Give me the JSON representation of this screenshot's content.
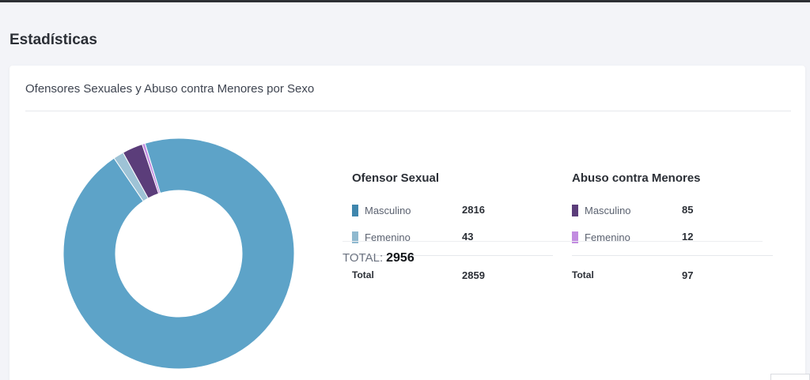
{
  "page": {
    "title": "Estadísticas"
  },
  "card": {
    "title": "Ofensores Sexuales y Abuso contra Menores por Sexo"
  },
  "colors": {
    "ofensor_masculino": "#5da3c8",
    "ofensor_femenino": "#9ec3d6",
    "abuso_masculino": "#5b3d7a",
    "abuso_femenino": "#c28ce0",
    "ofensor_masculino_swatch": "#3f86ad",
    "ofensor_femenino_swatch": "#8fb9cf"
  },
  "groups": [
    {
      "title": "Ofensor Sexual",
      "rows": [
        {
          "label": "Masculino",
          "value": "2816"
        },
        {
          "label": "Femenino",
          "value": "43"
        }
      ],
      "total_label": "Total",
      "total_value": "2859"
    },
    {
      "title": "Abuso contra Menores",
      "rows": [
        {
          "label": "Masculino",
          "value": "85"
        },
        {
          "label": "Femenino",
          "value": "12"
        }
      ],
      "total_label": "Total",
      "total_value": "97"
    }
  ],
  "grand_total": {
    "label": "TOTAL:",
    "value": "2956"
  },
  "chart_data": {
    "type": "pie",
    "donut": true,
    "categories": [
      "Ofensor Sexual Masculino",
      "Ofensor Sexual Femenino",
      "Abuso contra Menores Masculino",
      "Abuso contra Menores Femenino"
    ],
    "values": [
      2816,
      43,
      85,
      12
    ],
    "colors": [
      "#5da3c8",
      "#9ec3d6",
      "#5b3d7a",
      "#c28ce0"
    ]
  }
}
